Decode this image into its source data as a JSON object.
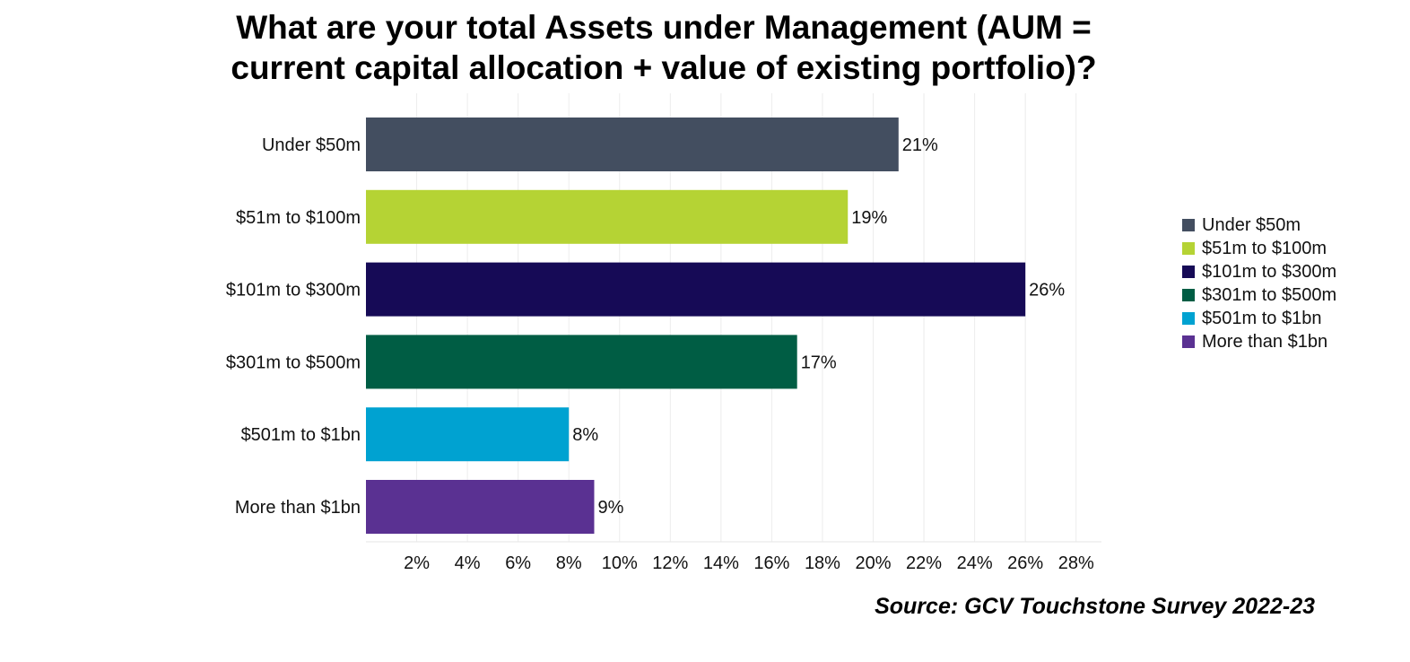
{
  "chart_data": {
    "type": "bar",
    "orientation": "horizontal",
    "title_lines": [
      "What are your total Assets under Management (AUM =",
      "current capital allocation + value of existing portfolio)?"
    ],
    "categories": [
      "Under $50m",
      "$51m to $100m",
      "$101m to $300m",
      "$301m to $500m",
      "$501m to $1bn",
      "More than $1bn"
    ],
    "values": [
      21,
      19,
      26,
      17,
      8,
      9
    ],
    "value_labels": [
      "21%",
      "19%",
      "26%",
      "17%",
      "8%",
      "9%"
    ],
    "colors": [
      "#434e60",
      "#b5d334",
      "#160a56",
      "#005d44",
      "#00a2d1",
      "#5a3192"
    ],
    "xlim": [
      0,
      29
    ],
    "x_ticks": [
      2,
      4,
      6,
      8,
      10,
      12,
      14,
      16,
      18,
      20,
      22,
      24,
      26,
      28
    ],
    "x_tick_labels": [
      "2%",
      "4%",
      "6%",
      "8%",
      "10%",
      "12%",
      "14%",
      "16%",
      "18%",
      "20%",
      "22%",
      "24%",
      "26%",
      "28%"
    ],
    "xlabel": "",
    "ylabel": "",
    "grid": true,
    "legend_position": "right",
    "legend": [
      "Under $50m",
      "$51m to $100m",
      "$101m to $300m",
      "$301m to $500m",
      "$501m to $1bn",
      "More than $1bn"
    ]
  },
  "source": "Source: GCV Touchstone Survey 2022-23"
}
